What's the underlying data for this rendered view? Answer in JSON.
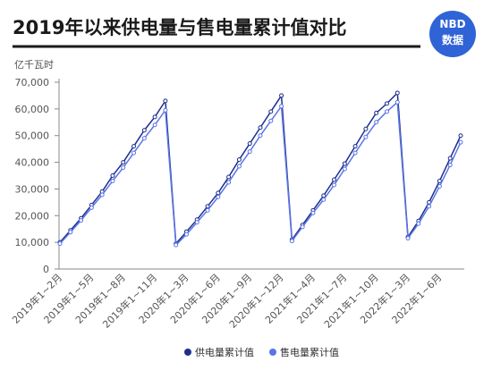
{
  "chart_data": {
    "type": "line",
    "title": "2019年以来供电量与售电量累计值对比",
    "badge": [
      "NBD",
      "数据"
    ],
    "y_label": "亿千瓦时",
    "categories": [
      "2019年1~2月",
      null,
      null,
      "2019年1~5月",
      null,
      null,
      "2019年1~8月",
      null,
      null,
      "2019年1~11月",
      null,
      null,
      "2020年1~3月",
      null,
      null,
      "2020年1~6月",
      null,
      null,
      "2020年1~9月",
      null,
      null,
      "2020年1~12月",
      null,
      null,
      "2021年1~4月",
      null,
      null,
      "2021年1~7月",
      null,
      null,
      "2021年1~10月",
      null,
      null,
      "2022年1~3月",
      null,
      null,
      "2022年1~6月",
      null,
      null
    ],
    "series": [
      {
        "name": "供电量累计值",
        "color": "#1c2f8c",
        "values": [
          10000,
          14500,
          19000,
          24000,
          29000,
          35000,
          40000,
          46000,
          52000,
          57000,
          63000,
          9500,
          14000,
          18500,
          23500,
          28500,
          34500,
          41000,
          47000,
          53000,
          59000,
          65000,
          11000,
          16500,
          22000,
          27500,
          33500,
          39500,
          46000,
          52500,
          58500,
          62000,
          66000,
          12000,
          18000,
          25000,
          33000,
          41500,
          50000
        ]
      },
      {
        "name": "售电量累计值",
        "color": "#5b74e6",
        "values": [
          9500,
          13800,
          18200,
          23000,
          27800,
          33000,
          38000,
          43500,
          49000,
          54000,
          59500,
          9000,
          13000,
          17500,
          22000,
          27000,
          32500,
          38500,
          44000,
          50000,
          55500,
          61000,
          10500,
          15800,
          21000,
          26000,
          31500,
          37500,
          43500,
          49500,
          55000,
          59000,
          62500,
          11500,
          17000,
          23500,
          31000,
          39000,
          47500
        ]
      }
    ],
    "ylim": [
      0,
      70000
    ],
    "yticks": [
      0,
      {
        "value": 10000,
        "label": "10,000"
      },
      {
        "value": 20000,
        "label": "20,000"
      },
      {
        "value": 30000,
        "label": "30,000"
      },
      {
        "value": 40000,
        "label": "40,000"
      },
      {
        "value": 50000,
        "label": "50,000"
      },
      {
        "value": 60000,
        "label": "60,000"
      },
      {
        "value": 70000,
        "label": "70,000"
      }
    ]
  }
}
